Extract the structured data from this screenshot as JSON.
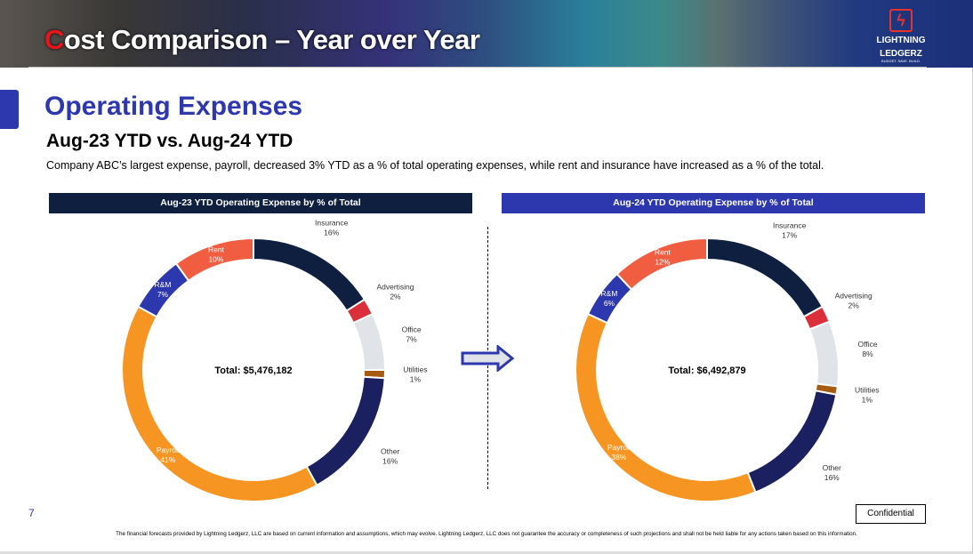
{
  "header": {
    "title_first_letter": "C",
    "title_rest": "ost Comparison – Year over Year",
    "logo": {
      "line1": "LIGHTNING",
      "line2": "LEDGERZ",
      "tagline": "BUDGET. SAVE. BUILD."
    }
  },
  "section": {
    "title": "Operating Expenses",
    "subtitle": "Aug-23 YTD vs. Aug-24 YTD",
    "description": "Company ABC’s largest expense, payroll, decreased 3% YTD as a % of total operating expenses, while rent and insurance have increased as a % of the total."
  },
  "colors": {
    "Insurance": "#0e1f40",
    "Advertising": "#dc2f3c",
    "Office": "#e0e3e8",
    "Utilities": "#a85a10",
    "Other": "#1b2060",
    "Payroll": "#f79523",
    "R&M": "#2e38ae",
    "Rent": "#f05d40"
  },
  "chart_data": [
    {
      "type": "pie",
      "donut": true,
      "title": "Aug-23 YTD Operating Expense by % of Total",
      "center_label": "Total: $5,476,182",
      "categories": [
        "Insurance",
        "Advertising",
        "Office",
        "Utilities",
        "Other",
        "Payroll",
        "R&M",
        "Rent"
      ],
      "values": [
        16,
        2,
        7,
        1,
        16,
        41,
        7,
        10
      ],
      "unit": "%"
    },
    {
      "type": "pie",
      "donut": true,
      "title": "Aug-24 YTD Operating Expense by % of Total",
      "center_label": "Total: $6,492,879",
      "categories": [
        "Insurance",
        "Advertising",
        "Office",
        "Utilities",
        "Other",
        "Payroll",
        "R&M",
        "Rent"
      ],
      "values": [
        17,
        2,
        8,
        1,
        16,
        38,
        6,
        12
      ],
      "unit": "%"
    }
  ],
  "footer": {
    "page_number": "7",
    "confidential": "Confidential",
    "disclaimer": "The financial forecasts provided by Lightning Ledgerz, LLC are based on current information and assumptions, which may evolve. Lightning Ledgerz, LLC does not guarantee the accuracy or completeness of such projections and shall not be held liable for any actions taken based on this information."
  }
}
